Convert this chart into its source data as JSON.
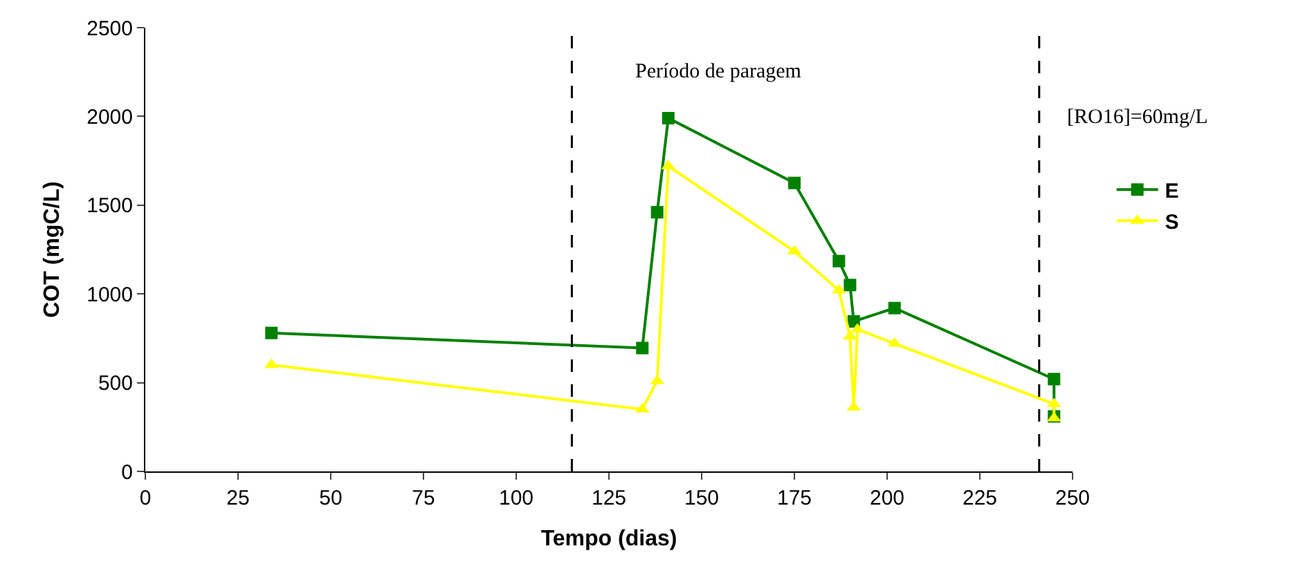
{
  "chart_data": {
    "type": "line",
    "xlabel": "Tempo (dias)",
    "ylabel": "COT (mgC/L)",
    "xlim": [
      0,
      250
    ],
    "xticks": [
      0,
      25,
      50,
      75,
      100,
      125,
      150,
      175,
      200,
      225,
      250
    ],
    "ylim": [
      0,
      2500
    ],
    "yticks": [
      0,
      500,
      1000,
      1500,
      2000,
      2500
    ],
    "legend": "right",
    "series": [
      {
        "name": "E",
        "color": "#008000",
        "marker": "square",
        "x": [
          34,
          134,
          138,
          141,
          175,
          187,
          190,
          191,
          202,
          245,
          245
        ],
        "values": [
          780,
          695,
          1460,
          1990,
          1625,
          1185,
          1050,
          845,
          920,
          520,
          310
        ]
      },
      {
        "name": "S",
        "color": "#ffff00",
        "marker": "triangle",
        "x": [
          34,
          134,
          138,
          141,
          175,
          187,
          190,
          191,
          192,
          202,
          245,
          245
        ],
        "values": [
          600,
          350,
          510,
          1720,
          1240,
          1020,
          760,
          360,
          800,
          720,
          380,
          300
        ]
      }
    ],
    "ref_lines": [
      {
        "axis": "x",
        "value": 115,
        "line_style": "dashed",
        "color": "#000000"
      },
      {
        "axis": "x",
        "value": 241,
        "line_style": "dashed",
        "color": "#000000"
      }
    ],
    "annotations": [
      "Período de paragem",
      "[RO16]=60mg/L"
    ]
  }
}
